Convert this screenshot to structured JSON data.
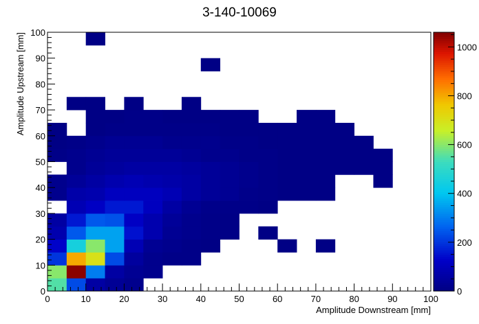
{
  "chart_data": {
    "type": "heatmap",
    "title": "3-140-10069",
    "xlabel": "Amplitude Downstream [mm]",
    "ylabel": "Amplitude Upstream [mm]",
    "xlim": [
      0,
      100
    ],
    "ylim": [
      0,
      100
    ],
    "bin_size": 5,
    "z_range": [
      0,
      1060
    ],
    "z_ticks": [
      0,
      200,
      400,
      600,
      800,
      1000
    ],
    "x_ticks": [
      0,
      10,
      20,
      30,
      40,
      50,
      60,
      70,
      80,
      90,
      100
    ],
    "y_ticks": [
      0,
      10,
      20,
      30,
      40,
      50,
      60,
      70,
      80,
      90,
      100
    ],
    "grid": false,
    "colorbar": "right",
    "colormap": "rainbow",
    "rows_note": "row index = y bin (0 = 0-5 mm), column index = x bin (0 = 0-5 mm); 0 = empty",
    "bins": [
      [
        550,
        230,
        60,
        35,
        20,
        0,
        0,
        0,
        0,
        0,
        0,
        0,
        0,
        0,
        0,
        0,
        0,
        0,
        0,
        0
      ],
      [
        600,
        1050,
        300,
        60,
        30,
        20,
        0,
        0,
        0,
        0,
        0,
        0,
        0,
        0,
        0,
        0,
        0,
        0,
        0,
        0
      ],
      [
        200,
        800,
        700,
        230,
        50,
        20,
        10,
        10,
        0,
        0,
        0,
        0,
        0,
        0,
        0,
        0,
        0,
        0,
        0,
        0
      ],
      [
        130,
        450,
        600,
        350,
        90,
        30,
        20,
        10,
        5,
        0,
        0,
        0,
        5,
        0,
        5,
        0,
        0,
        0,
        0,
        0
      ],
      [
        80,
        250,
        350,
        350,
        150,
        80,
        30,
        20,
        10,
        8,
        0,
        5,
        0,
        0,
        0,
        0,
        0,
        0,
        0,
        0
      ],
      [
        60,
        160,
        250,
        240,
        120,
        80,
        40,
        20,
        10,
        8,
        0,
        0,
        0,
        0,
        0,
        0,
        0,
        0,
        0,
        0
      ],
      [
        0,
        90,
        120,
        160,
        160,
        110,
        60,
        30,
        15,
        10,
        10,
        5,
        0,
        0,
        0,
        0,
        0,
        0,
        0,
        0
      ],
      [
        20,
        70,
        80,
        110,
        110,
        110,
        90,
        60,
        40,
        30,
        15,
        10,
        5,
        5,
        5,
        0,
        0,
        0,
        0,
        0
      ],
      [
        20,
        40,
        60,
        80,
        90,
        80,
        70,
        60,
        40,
        30,
        20,
        10,
        5,
        5,
        5,
        0,
        0,
        5,
        0,
        0
      ],
      [
        0,
        20,
        40,
        50,
        60,
        60,
        60,
        50,
        40,
        30,
        20,
        10,
        5,
        5,
        5,
        5,
        5,
        5,
        0,
        0
      ],
      [
        10,
        20,
        30,
        40,
        40,
        40,
        40,
        30,
        20,
        20,
        10,
        10,
        5,
        5,
        5,
        5,
        5,
        5,
        0,
        0
      ],
      [
        5,
        10,
        20,
        30,
        30,
        30,
        20,
        20,
        20,
        10,
        10,
        5,
        5,
        5,
        5,
        5,
        5,
        0,
        0,
        0
      ],
      [
        5,
        0,
        5,
        10,
        10,
        10,
        10,
        10,
        10,
        5,
        5,
        5,
        5,
        5,
        5,
        5,
        0,
        0,
        0,
        0
      ],
      [
        0,
        0,
        5,
        5,
        10,
        10,
        5,
        5,
        5,
        5,
        5,
        0,
        0,
        5,
        5,
        0,
        0,
        0,
        0,
        0
      ],
      [
        0,
        5,
        5,
        0,
        5,
        0,
        0,
        5,
        0,
        0,
        0,
        0,
        0,
        0,
        0,
        0,
        0,
        0,
        0,
        0
      ],
      [
        0,
        0,
        0,
        0,
        0,
        0,
        0,
        0,
        0,
        0,
        0,
        0,
        0,
        0,
        0,
        0,
        0,
        0,
        0,
        0
      ],
      [
        0,
        0,
        0,
        0,
        0,
        0,
        0,
        0,
        0,
        0,
        0,
        0,
        0,
        0,
        0,
        0,
        0,
        0,
        0,
        0
      ],
      [
        0,
        0,
        0,
        0,
        0,
        0,
        0,
        0,
        5,
        0,
        0,
        0,
        0,
        0,
        0,
        0,
        0,
        0,
        0,
        0
      ],
      [
        0,
        0,
        0,
        0,
        0,
        0,
        0,
        0,
        0,
        0,
        0,
        0,
        0,
        0,
        0,
        0,
        0,
        0,
        0,
        0
      ],
      [
        0,
        0,
        5,
        0,
        0,
        0,
        0,
        0,
        0,
        0,
        0,
        0,
        0,
        0,
        0,
        0,
        0,
        0,
        0,
        0
      ]
    ]
  }
}
